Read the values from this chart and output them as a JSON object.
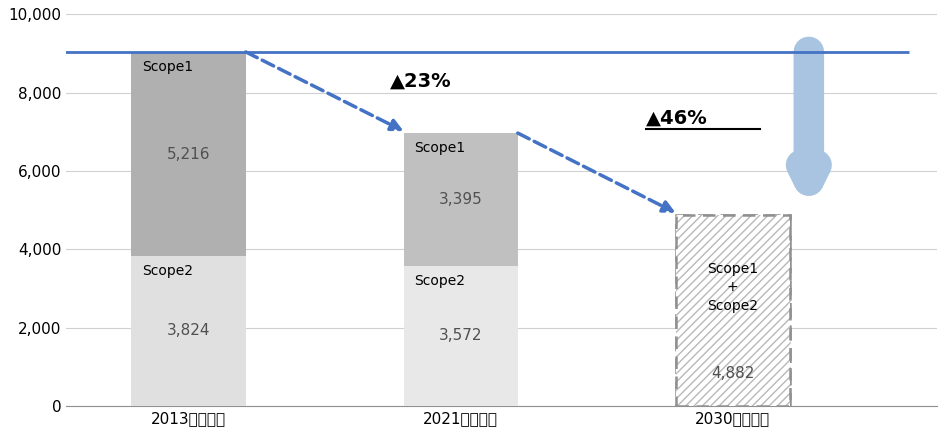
{
  "categories": [
    "2013年度実績",
    "2021年度実績",
    "2030年度目標"
  ],
  "scope2_values": [
    3824,
    3572
  ],
  "scope1_values": [
    5216,
    3395
  ],
  "target_value": 4882,
  "total_2013": 9040,
  "total_2021": 6967,
  "bar_width": 0.42,
  "scope2_color_2013": "#e0e0e0",
  "scope1_color_2013": "#b0b0b0",
  "scope2_color_2021": "#e8e8e8",
  "scope1_color_2021": "#c0c0c0",
  "reference_line_y": 9040,
  "reference_line_color": "#4472c4",
  "arrow_color": "#4472c4",
  "big_arrow_color": "#a8c4e0",
  "ylim": [
    0,
    10000
  ],
  "yticks": [
    0,
    2000,
    4000,
    6000,
    8000,
    10000
  ],
  "bg_color": "#ffffff",
  "grid_color": "#d0d0d0",
  "hatch_color": "#b0b0b0",
  "label_fontsize": 11,
  "scope_label_fontsize": 10,
  "tick_fontsize": 11,
  "annot_fontsize": 14
}
